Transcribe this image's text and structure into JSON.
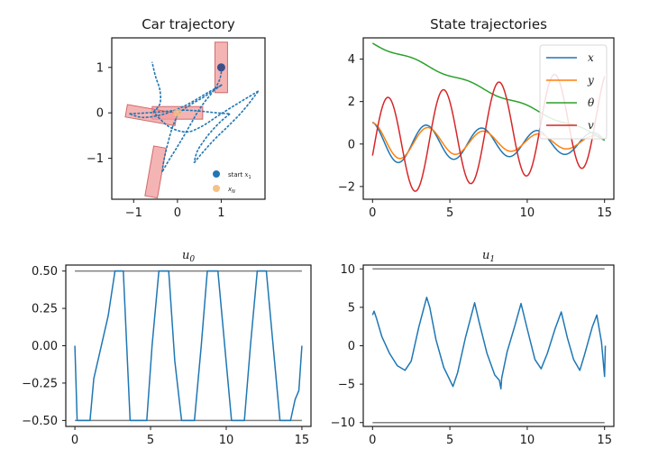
{
  "chart_data": [
    {
      "id": "car",
      "type": "line",
      "title": "Car trajectory",
      "xlim": [
        -1.5,
        2
      ],
      "ylim": [
        -1.9,
        1.65
      ],
      "xticks": [
        -1,
        0,
        1
      ],
      "yticks": [
        -1,
        0,
        1
      ],
      "grid": false,
      "legend": {
        "placement": "bottom-right",
        "entries": [
          {
            "label": "start x_1",
            "color": "#1f77b4"
          },
          {
            "label": "x_N",
            "color": "#f5c187"
          }
        ]
      },
      "start_point": {
        "x": 1.0,
        "y": 1.0
      },
      "end_point": {
        "x": 0.0,
        "y": 0.0
      },
      "path_color": "#1f77b4",
      "car_color": "#f29b9b",
      "paths": [
        [
          [
            1.0,
            1.0
          ],
          [
            1.0,
            0.88
          ],
          [
            0.95,
            0.7
          ],
          [
            0.82,
            0.48
          ],
          [
            0.62,
            0.24
          ],
          [
            0.45,
            0.0
          ],
          [
            0.3,
            -0.25
          ],
          [
            0.12,
            -0.55
          ],
          [
            -0.05,
            -0.82
          ],
          [
            -0.2,
            -1.05
          ],
          [
            -0.35,
            -1.3
          ]
        ],
        [
          [
            -0.35,
            -1.3
          ],
          [
            -0.3,
            -1.0
          ],
          [
            -0.2,
            -0.6
          ],
          [
            -0.1,
            -0.28
          ],
          [
            0.05,
            0.0
          ],
          [
            0.3,
            0.18
          ],
          [
            0.62,
            0.36
          ],
          [
            1.02,
            0.62
          ]
        ],
        [
          [
            1.02,
            0.62
          ],
          [
            0.7,
            0.45
          ],
          [
            0.35,
            0.25
          ],
          [
            0.0,
            0.08
          ],
          [
            -0.4,
            -0.05
          ],
          [
            -0.8,
            -0.1
          ],
          [
            -1.1,
            -0.02
          ]
        ],
        [
          [
            -1.1,
            -0.02
          ],
          [
            -0.7,
            0.0
          ],
          [
            -0.3,
            0.03
          ],
          [
            0.1,
            0.06
          ],
          [
            0.5,
            0.04
          ],
          [
            0.9,
            0.0
          ],
          [
            1.2,
            -0.02
          ]
        ],
        [
          [
            1.2,
            -0.02
          ],
          [
            1.0,
            -0.18
          ],
          [
            0.78,
            -0.4
          ],
          [
            0.6,
            -0.62
          ],
          [
            0.45,
            -0.85
          ],
          [
            0.38,
            -1.1
          ]
        ],
        [
          [
            0.38,
            -1.1
          ],
          [
            0.55,
            -0.9
          ],
          [
            0.85,
            -0.58
          ],
          [
            1.15,
            -0.3
          ],
          [
            1.5,
            0.05
          ],
          [
            1.85,
            0.48
          ]
        ],
        [
          [
            1.85,
            0.48
          ],
          [
            1.4,
            0.22
          ],
          [
            0.95,
            -0.05
          ],
          [
            0.55,
            -0.3
          ],
          [
            0.2,
            -0.42
          ],
          [
            -0.2,
            -0.3
          ],
          [
            -0.55,
            0.02
          ]
        ],
        [
          [
            -0.55,
            0.02
          ],
          [
            -0.4,
            0.2
          ],
          [
            -0.4,
            0.5
          ],
          [
            -0.5,
            0.8
          ],
          [
            -0.58,
            1.12
          ]
        ]
      ],
      "cars": [
        {
          "x": 1.0,
          "y": 1.0,
          "angle_deg": 90
        },
        {
          "x": 0.0,
          "y": 0.0,
          "angle_deg": 0
        },
        {
          "x": -0.6,
          "y": -0.05,
          "angle_deg": -10
        },
        {
          "x": -0.5,
          "y": -1.3,
          "angle_deg": 80
        }
      ]
    },
    {
      "id": "state",
      "type": "line",
      "title": "State trajectories",
      "xlim": [
        -0.6,
        15.6
      ],
      "ylim": [
        -2.6,
        5.0
      ],
      "xticks": [
        0,
        5,
        10,
        15
      ],
      "yticks": [
        -2,
        0,
        2,
        4
      ],
      "grid": false,
      "legend": {
        "placement": "top-right"
      },
      "series": [
        {
          "name": "x",
          "color": "#1f77b4",
          "fn": "1.0*exp(-0.05*t)*cos(1.75*t+0.2)+0.05"
        },
        {
          "name": "y",
          "color": "#ff7f0e",
          "fn": "0.9*exp(-0.08*t)*cos(1.75*t)+0.1"
        },
        {
          "name": "θ",
          "color": "#2ca02c",
          "fn": "4.75-0.3*t-0.08*sin(1.75*t)"
        },
        {
          "name": "v",
          "color": "#d62728",
          "fn": "2.3*sin(1.75*t-0.15)+0.1*t-0.2"
        }
      ]
    },
    {
      "id": "u0",
      "type": "line",
      "title": "u_0",
      "xlim": [
        -0.6,
        15.6
      ],
      "ylim": [
        -0.54,
        0.54
      ],
      "xticks": [
        0,
        5,
        10,
        15
      ],
      "yticks": [
        -0.5,
        -0.25,
        0.0,
        0.25,
        0.5
      ],
      "ytick_labels": [
        "−0.50",
        "−0.25",
        "0.00",
        "0.25",
        "0.50"
      ],
      "bounds": [
        -0.5,
        0.5
      ],
      "bound_color": "#808080",
      "grid": false,
      "series": [
        {
          "color": "#1f77b4",
          "points": [
            [
              0,
              0.0
            ],
            [
              0.15,
              -0.5
            ],
            [
              1.0,
              -0.5
            ],
            [
              1.25,
              -0.22
            ],
            [
              2.2,
              0.2
            ],
            [
              2.65,
              0.5
            ],
            [
              3.2,
              0.5
            ],
            [
              3.65,
              -0.5
            ],
            [
              4.75,
              -0.5
            ],
            [
              5.1,
              0.0
            ],
            [
              5.55,
              0.5
            ],
            [
              6.2,
              0.5
            ],
            [
              6.6,
              -0.1
            ],
            [
              7.05,
              -0.5
            ],
            [
              7.9,
              -0.5
            ],
            [
              8.35,
              0.0
            ],
            [
              8.75,
              0.5
            ],
            [
              9.45,
              0.5
            ],
            [
              9.9,
              0.0
            ],
            [
              10.35,
              -0.5
            ],
            [
              11.2,
              -0.5
            ],
            [
              11.6,
              0.0
            ],
            [
              12.05,
              0.5
            ],
            [
              12.65,
              0.5
            ],
            [
              13.1,
              0.0
            ],
            [
              13.55,
              -0.5
            ],
            [
              14.25,
              -0.5
            ],
            [
              14.55,
              -0.36
            ],
            [
              14.8,
              -0.3
            ],
            [
              15.0,
              0.0
            ]
          ]
        }
      ]
    },
    {
      "id": "u1",
      "type": "line",
      "title": "u_1",
      "xlim": [
        -0.6,
        15.6
      ],
      "ylim": [
        -10.5,
        10.5
      ],
      "xticks": [
        0,
        5,
        10,
        15
      ],
      "yticks": [
        -10,
        -5,
        0,
        5,
        10
      ],
      "ytick_labels": [
        "−10",
        "−5",
        "0",
        "5",
        "10"
      ],
      "bounds": [
        -10,
        10
      ],
      "bound_color": "#808080",
      "grid": false,
      "series": [
        {
          "color": "#1f77b4",
          "points": [
            [
              0,
              4.0
            ],
            [
              0.1,
              4.5
            ],
            [
              0.25,
              3.6
            ],
            [
              0.6,
              1.2
            ],
            [
              1.1,
              -1.0
            ],
            [
              1.6,
              -2.6
            ],
            [
              2.1,
              -3.2
            ],
            [
              2.5,
              -2.0
            ],
            [
              3.0,
              2.5
            ],
            [
              3.5,
              6.3
            ],
            [
              3.7,
              5.0
            ],
            [
              4.1,
              0.8
            ],
            [
              4.6,
              -2.8
            ],
            [
              5.2,
              -5.3
            ],
            [
              5.5,
              -3.5
            ],
            [
              6.0,
              1.0
            ],
            [
              6.6,
              5.6
            ],
            [
              6.9,
              3.0
            ],
            [
              7.4,
              -1.0
            ],
            [
              7.9,
              -3.8
            ],
            [
              8.2,
              -4.5
            ],
            [
              8.3,
              -5.6
            ],
            [
              8.35,
              -4.2
            ],
            [
              8.7,
              -0.8
            ],
            [
              9.2,
              2.6
            ],
            [
              9.6,
              5.5
            ],
            [
              10.0,
              2.2
            ],
            [
              10.5,
              -1.8
            ],
            [
              10.9,
              -3.0
            ],
            [
              11.3,
              -1.0
            ],
            [
              11.8,
              2.2
            ],
            [
              12.2,
              4.4
            ],
            [
              12.6,
              1.0
            ],
            [
              13.0,
              -1.8
            ],
            [
              13.4,
              -3.2
            ],
            [
              13.7,
              -1.2
            ],
            [
              14.2,
              2.4
            ],
            [
              14.5,
              4.0
            ],
            [
              14.8,
              0.5
            ],
            [
              15.0,
              -4.0
            ],
            [
              15.05,
              0.0
            ]
          ]
        }
      ]
    }
  ]
}
